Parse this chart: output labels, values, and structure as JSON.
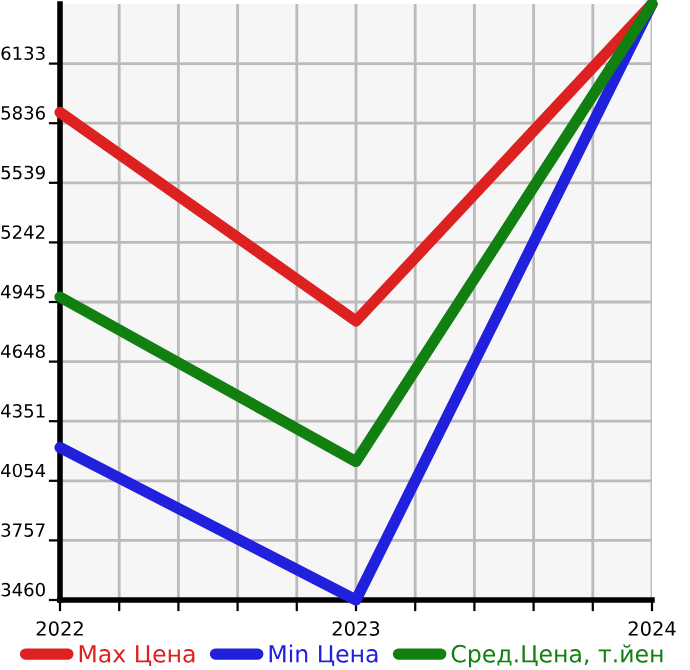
{
  "chart_data": {
    "type": "line",
    "x": [
      2022,
      2023,
      2024
    ],
    "series": [
      {
        "name": "Max Цена",
        "color": "#dd2020",
        "values": [
          5890,
          4850,
          6430
        ]
      },
      {
        "name": "Min Цена",
        "color": "#2020dd",
        "values": [
          4220,
          3460,
          6430
        ]
      },
      {
        "name": "Сред.Цена, т.йен",
        "color": "#118011",
        "values": [
          4970,
          4150,
          6430
        ]
      }
    ],
    "xlim": [
      2022,
      2024
    ],
    "xticks": [
      2022,
      {
        "value": 2022.2,
        "label": null
      },
      {
        "value": 2022.4,
        "label": null
      },
      {
        "value": 2022.6,
        "label": null
      },
      {
        "value": 2022.8,
        "label": null
      },
      2023,
      {
        "value": 2023.2,
        "label": null
      },
      {
        "value": 2023.4,
        "label": null
      },
      {
        "value": 2023.6,
        "label": null
      },
      {
        "value": 2023.8,
        "label": null
      },
      2024
    ],
    "ylim": [
      3460,
      6430
    ],
    "yticks": [
      3460,
      3757,
      4054,
      4351,
      4648,
      4945,
      5242,
      5539,
      5836,
      6133
    ],
    "grid": true,
    "legend": "bottom",
    "marker": "none",
    "line_style": "solid"
  }
}
